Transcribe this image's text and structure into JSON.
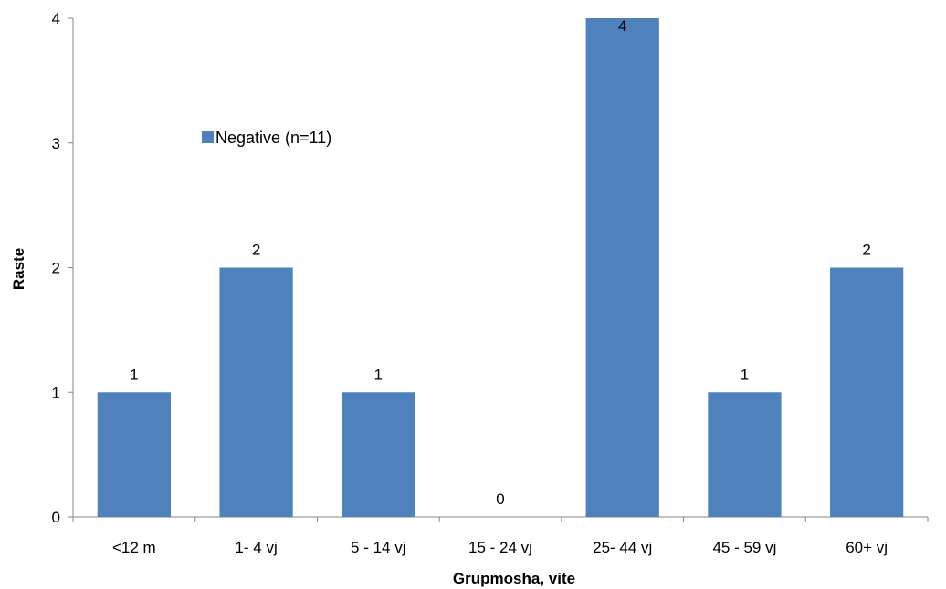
{
  "chart_data": {
    "type": "bar",
    "title": "",
    "xlabel": "Grupmosha, vite",
    "ylabel": "Raste",
    "categories": [
      "<12 m",
      "1- 4 vj",
      "5 - 14 vj",
      "15 - 24 vj",
      "25- 44 vj",
      "45 - 59 vj",
      "60+ vj"
    ],
    "series": [
      {
        "name": "Negative (n=11)",
        "values": [
          1,
          2,
          1,
          0,
          4,
          1,
          2
        ],
        "color": "#4F81BD"
      }
    ],
    "data_labels": [
      "1",
      "2",
      "1",
      "0",
      "4",
      "1",
      "2"
    ],
    "ylim": [
      0,
      4
    ],
    "yticks": [
      0,
      1,
      2,
      3,
      4
    ],
    "grid": false,
    "legend_position": "upper-left inside plot"
  }
}
